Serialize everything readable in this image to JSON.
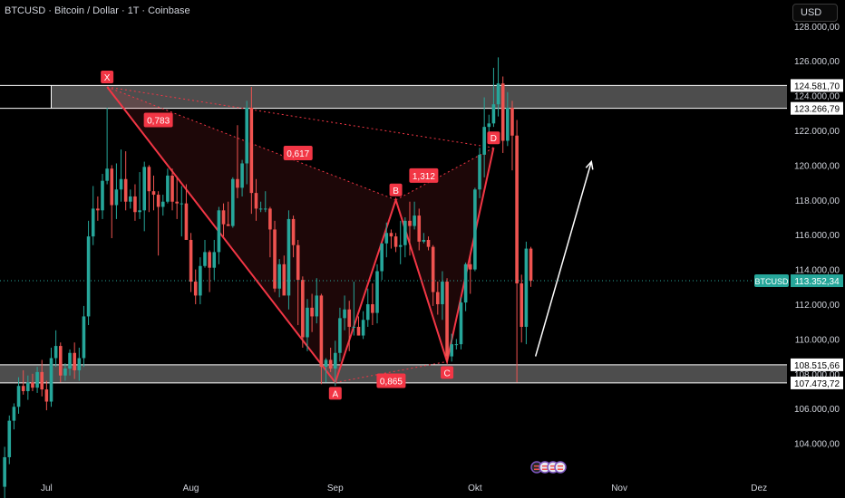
{
  "header": {
    "title": "BTCUSD · Bitcoin / Dollar · 1T · Coinbase",
    "currency_button": "USD"
  },
  "colors": {
    "background": "#000000",
    "up": "#26a69a",
    "down": "#ef5350",
    "pattern": "#f23645",
    "zone_fill": "#ffffff",
    "axis_text": "#d1d4dc",
    "arrow": "#ffffff"
  },
  "chart_data": {
    "type": "candlestick",
    "symbol": "BTCUSD",
    "y_ticks": [
      "104.000,00",
      "106.000,00",
      "108.000,00",
      "110.000,00",
      "112.000,00",
      "114.000,00",
      "116.000,00",
      "118.000,00",
      "120.000,00",
      "122.000,00",
      "124.000,00",
      "126.000,00",
      "128.000,00"
    ],
    "y_tick_values": [
      104000,
      106000,
      108000,
      110000,
      112000,
      114000,
      116000,
      118000,
      120000,
      122000,
      124000,
      126000,
      128000
    ],
    "ylim": [
      102000,
      129500
    ],
    "x_ticks": [
      {
        "label": "Jul",
        "date": "2025-07-01"
      },
      {
        "label": "Aug",
        "date": "2025-08-01"
      },
      {
        "label": "Sep",
        "date": "2025-09-01"
      },
      {
        "label": "Okt",
        "date": "2025-10-01"
      },
      {
        "label": "Nov",
        "date": "2025-11-01"
      },
      {
        "label": "Dez",
        "date": "2025-12-01"
      }
    ],
    "xlim": [
      "2025-06-21",
      "2025-12-07"
    ],
    "last_price": {
      "label": "BTCUSD",
      "value": 113352.34,
      "text": "113.352,34"
    },
    "zones": [
      {
        "top": 124581.7,
        "bottom": 123266.79,
        "top_text": "124.581,70",
        "bottom_text": "123.266,79",
        "start": "2025-07-02"
      },
      {
        "top": 108515.66,
        "bottom": 107473.72,
        "top_text": "108.515,66",
        "bottom_text": "107.473,72",
        "start": "2025-06-21"
      }
    ],
    "harmonic_points": [
      {
        "label": "X",
        "date": "2025-07-14",
        "price": 124500
      },
      {
        "label": "A",
        "date": "2025-09-01",
        "price": 107500
      },
      {
        "label": "B",
        "date": "2025-09-14",
        "price": 118000
      },
      {
        "label": "C",
        "date": "2025-09-25",
        "price": 108700
      },
      {
        "label": "D",
        "date": "2025-10-05",
        "price": 121000
      }
    ],
    "ratios": [
      {
        "text": "0,783",
        "date": "2025-07-25",
        "price": 122600
      },
      {
        "text": "0,617",
        "date": "2025-08-24",
        "price": 120700
      },
      {
        "text": "1,312",
        "date": "2025-09-20",
        "price": 119400
      },
      {
        "text": "0,865",
        "date": "2025-09-13",
        "price": 107600
      }
    ],
    "projection_arrow": {
      "from_date": "2025-10-14",
      "from_price": 109000,
      "to_date": "2025-10-26",
      "to_price": 120200
    },
    "candles": [
      {
        "d": "2025-06-22",
        "o": 101500,
        "h": 103800,
        "l": 100800,
        "c": 103200
      },
      {
        "d": "2025-06-23",
        "o": 103200,
        "h": 105600,
        "l": 102800,
        "c": 105300
      },
      {
        "d": "2025-06-24",
        "o": 105300,
        "h": 106300,
        "l": 104800,
        "c": 106100
      },
      {
        "d": "2025-06-25",
        "o": 106100,
        "h": 107800,
        "l": 105700,
        "c": 107300
      },
      {
        "d": "2025-06-26",
        "o": 107300,
        "h": 108200,
        "l": 106800,
        "c": 107000
      },
      {
        "d": "2025-06-27",
        "o": 107000,
        "h": 107900,
        "l": 106500,
        "c": 107500
      },
      {
        "d": "2025-06-28",
        "o": 107500,
        "h": 108000,
        "l": 107000,
        "c": 107200
      },
      {
        "d": "2025-06-29",
        "o": 107200,
        "h": 108400,
        "l": 106900,
        "c": 108100
      },
      {
        "d": "2025-06-30",
        "o": 108100,
        "h": 108800,
        "l": 106700,
        "c": 107100
      },
      {
        "d": "2025-07-01",
        "o": 107100,
        "h": 107600,
        "l": 105900,
        "c": 106400
      },
      {
        "d": "2025-07-02",
        "o": 106400,
        "h": 109500,
        "l": 106100,
        "c": 108900
      },
      {
        "d": "2025-07-03",
        "o": 108900,
        "h": 110500,
        "l": 108400,
        "c": 109600
      },
      {
        "d": "2025-07-04",
        "o": 109600,
        "h": 109800,
        "l": 107500,
        "c": 107900
      },
      {
        "d": "2025-07-05",
        "o": 107900,
        "h": 108600,
        "l": 107600,
        "c": 108300
      },
      {
        "d": "2025-07-06",
        "o": 108300,
        "h": 109400,
        "l": 107900,
        "c": 109200
      },
      {
        "d": "2025-07-07",
        "o": 109200,
        "h": 109800,
        "l": 107700,
        "c": 108200
      },
      {
        "d": "2025-07-08",
        "o": 108200,
        "h": 109500,
        "l": 107600,
        "c": 108900
      },
      {
        "d": "2025-07-09",
        "o": 108900,
        "h": 111900,
        "l": 108400,
        "c": 111300
      },
      {
        "d": "2025-07-10",
        "o": 111300,
        "h": 116800,
        "l": 110800,
        "c": 115900
      },
      {
        "d": "2025-07-11",
        "o": 115900,
        "h": 118800,
        "l": 115400,
        "c": 117500
      },
      {
        "d": "2025-07-12",
        "o": 117500,
        "h": 118200,
        "l": 116800,
        "c": 117400
      },
      {
        "d": "2025-07-13",
        "o": 117400,
        "h": 119500,
        "l": 116900,
        "c": 119100
      },
      {
        "d": "2025-07-14",
        "o": 119100,
        "h": 123300,
        "l": 118900,
        "c": 119800
      },
      {
        "d": "2025-07-15",
        "o": 119800,
        "h": 120000,
        "l": 115800,
        "c": 117700
      },
      {
        "d": "2025-07-16",
        "o": 117700,
        "h": 120100,
        "l": 116900,
        "c": 118600
      },
      {
        "d": "2025-07-17",
        "o": 118600,
        "h": 120900,
        "l": 117900,
        "c": 119200
      },
      {
        "d": "2025-07-18",
        "o": 119200,
        "h": 120800,
        "l": 117400,
        "c": 117900
      },
      {
        "d": "2025-07-19",
        "o": 117900,
        "h": 118600,
        "l": 117500,
        "c": 118200
      },
      {
        "d": "2025-07-20",
        "o": 118200,
        "h": 118900,
        "l": 116800,
        "c": 117300
      },
      {
        "d": "2025-07-21",
        "o": 117300,
        "h": 119600,
        "l": 116900,
        "c": 117400
      },
      {
        "d": "2025-07-22",
        "o": 117400,
        "h": 120200,
        "l": 116200,
        "c": 119900
      },
      {
        "d": "2025-07-23",
        "o": 119900,
        "h": 120000,
        "l": 117300,
        "c": 118500
      },
      {
        "d": "2025-07-24",
        "o": 118500,
        "h": 119400,
        "l": 117400,
        "c": 118300
      },
      {
        "d": "2025-07-25",
        "o": 118300,
        "h": 118500,
        "l": 114800,
        "c": 117600
      },
      {
        "d": "2025-07-26",
        "o": 117600,
        "h": 118300,
        "l": 117100,
        "c": 117900
      },
      {
        "d": "2025-07-27",
        "o": 117900,
        "h": 119800,
        "l": 117800,
        "c": 119400
      },
      {
        "d": "2025-07-28",
        "o": 119400,
        "h": 119800,
        "l": 117400,
        "c": 117900
      },
      {
        "d": "2025-07-29",
        "o": 117900,
        "h": 119300,
        "l": 116900,
        "c": 117800
      },
      {
        "d": "2025-07-30",
        "o": 117800,
        "h": 118800,
        "l": 115900,
        "c": 117800
      },
      {
        "d": "2025-07-31",
        "o": 117800,
        "h": 118900,
        "l": 115800,
        "c": 115700
      },
      {
        "d": "2025-08-01",
        "o": 115700,
        "h": 116100,
        "l": 112700,
        "c": 113300
      },
      {
        "d": "2025-08-02",
        "o": 113300,
        "h": 114000,
        "l": 112000,
        "c": 112500
      },
      {
        "d": "2025-08-03",
        "o": 112500,
        "h": 114700,
        "l": 112000,
        "c": 114200
      },
      {
        "d": "2025-08-04",
        "o": 114200,
        "h": 115700,
        "l": 114100,
        "c": 115000
      },
      {
        "d": "2025-08-05",
        "o": 115000,
        "h": 115100,
        "l": 112700,
        "c": 114100
      },
      {
        "d": "2025-08-06",
        "o": 114100,
        "h": 115700,
        "l": 113400,
        "c": 115000
      },
      {
        "d": "2025-08-07",
        "o": 115000,
        "h": 117600,
        "l": 114300,
        "c": 117400
      },
      {
        "d": "2025-08-08",
        "o": 117400,
        "h": 117800,
        "l": 115900,
        "c": 116600
      },
      {
        "d": "2025-08-09",
        "o": 116600,
        "h": 117900,
        "l": 116500,
        "c": 116500
      },
      {
        "d": "2025-08-10",
        "o": 116500,
        "h": 119300,
        "l": 116400,
        "c": 119200
      },
      {
        "d": "2025-08-11",
        "o": 119200,
        "h": 122300,
        "l": 118100,
        "c": 118700
      },
      {
        "d": "2025-08-12",
        "o": 118700,
        "h": 120300,
        "l": 118200,
        "c": 120100
      },
      {
        "d": "2025-08-13",
        "o": 120100,
        "h": 123700,
        "l": 118900,
        "c": 123300
      },
      {
        "d": "2025-08-14",
        "o": 123300,
        "h": 124500,
        "l": 117200,
        "c": 118400
      },
      {
        "d": "2025-08-15",
        "o": 118400,
        "h": 119200,
        "l": 116800,
        "c": 117500
      },
      {
        "d": "2025-08-16",
        "o": 117500,
        "h": 117900,
        "l": 117300,
        "c": 117500
      },
      {
        "d": "2025-08-17",
        "o": 117500,
        "h": 118500,
        "l": 117300,
        "c": 117500
      },
      {
        "d": "2025-08-18",
        "o": 117500,
        "h": 117600,
        "l": 114700,
        "c": 116300
      },
      {
        "d": "2025-08-19",
        "o": 116300,
        "h": 116800,
        "l": 112700,
        "c": 112900
      },
      {
        "d": "2025-08-20",
        "o": 112900,
        "h": 114600,
        "l": 112400,
        "c": 114300
      },
      {
        "d": "2025-08-21",
        "o": 114300,
        "h": 114800,
        "l": 112600,
        "c": 112500
      },
      {
        "d": "2025-08-22",
        "o": 112500,
        "h": 117400,
        "l": 111700,
        "c": 116900
      },
      {
        "d": "2025-08-23",
        "o": 116900,
        "h": 117100,
        "l": 114700,
        "c": 115400
      },
      {
        "d": "2025-08-24",
        "o": 115400,
        "h": 115700,
        "l": 110800,
        "c": 113400
      },
      {
        "d": "2025-08-25",
        "o": 113400,
        "h": 113600,
        "l": 109500,
        "c": 110100
      },
      {
        "d": "2025-08-26",
        "o": 110100,
        "h": 112300,
        "l": 109300,
        "c": 111800
      },
      {
        "d": "2025-08-27",
        "o": 111800,
        "h": 112600,
        "l": 110400,
        "c": 111300
      },
      {
        "d": "2025-08-28",
        "o": 111300,
        "h": 113500,
        "l": 110900,
        "c": 112500
      },
      {
        "d": "2025-08-29",
        "o": 112500,
        "h": 112600,
        "l": 107400,
        "c": 108400
      },
      {
        "d": "2025-08-30",
        "o": 108400,
        "h": 108900,
        "l": 107500,
        "c": 108800
      },
      {
        "d": "2025-08-31",
        "o": 108800,
        "h": 109500,
        "l": 108100,
        "c": 108300
      },
      {
        "d": "2025-09-01",
        "o": 108300,
        "h": 109900,
        "l": 107300,
        "c": 109200
      },
      {
        "d": "2025-09-02",
        "o": 109200,
        "h": 111800,
        "l": 108700,
        "c": 111200
      },
      {
        "d": "2025-09-03",
        "o": 111200,
        "h": 112500,
        "l": 110500,
        "c": 111700
      },
      {
        "d": "2025-09-04",
        "o": 111700,
        "h": 112200,
        "l": 109300,
        "c": 110700
      },
      {
        "d": "2025-09-05",
        "o": 110700,
        "h": 113300,
        "l": 110200,
        "c": 110700
      },
      {
        "d": "2025-09-06",
        "o": 110700,
        "h": 111300,
        "l": 110200,
        "c": 110200
      },
      {
        "d": "2025-09-07",
        "o": 110200,
        "h": 111600,
        "l": 110000,
        "c": 111100
      },
      {
        "d": "2025-09-08",
        "o": 111100,
        "h": 112900,
        "l": 110700,
        "c": 112000
      },
      {
        "d": "2025-09-09",
        "o": 112000,
        "h": 113200,
        "l": 110800,
        "c": 111500
      },
      {
        "d": "2025-09-10",
        "o": 111500,
        "h": 114300,
        "l": 110900,
        "c": 113900
      },
      {
        "d": "2025-09-11",
        "o": 113900,
        "h": 115500,
        "l": 113400,
        "c": 115500
      },
      {
        "d": "2025-09-12",
        "o": 115500,
        "h": 116700,
        "l": 114700,
        "c": 116100
      },
      {
        "d": "2025-09-13",
        "o": 116100,
        "h": 116300,
        "l": 115200,
        "c": 115900
      },
      {
        "d": "2025-09-14",
        "o": 115900,
        "h": 116100,
        "l": 115000,
        "c": 115300
      },
      {
        "d": "2025-09-15",
        "o": 115300,
        "h": 116800,
        "l": 114300,
        "c": 115400
      },
      {
        "d": "2025-09-16",
        "o": 115400,
        "h": 117000,
        "l": 114700,
        "c": 116800
      },
      {
        "d": "2025-09-17",
        "o": 116800,
        "h": 117900,
        "l": 114800,
        "c": 116500
      },
      {
        "d": "2025-09-18",
        "o": 116500,
        "h": 117900,
        "l": 116300,
        "c": 117100
      },
      {
        "d": "2025-09-19",
        "o": 117100,
        "h": 117500,
        "l": 115100,
        "c": 115600
      },
      {
        "d": "2025-09-20",
        "o": 115600,
        "h": 116100,
        "l": 115500,
        "c": 115700
      },
      {
        "d": "2025-09-21",
        "o": 115700,
        "h": 115900,
        "l": 115100,
        "c": 115300
      },
      {
        "d": "2025-09-22",
        "o": 115300,
        "h": 115400,
        "l": 111900,
        "c": 112700
      },
      {
        "d": "2025-09-23",
        "o": 112700,
        "h": 113300,
        "l": 111400,
        "c": 112000
      },
      {
        "d": "2025-09-24",
        "o": 112000,
        "h": 113900,
        "l": 111100,
        "c": 113300
      },
      {
        "d": "2025-09-25",
        "o": 113300,
        "h": 113500,
        "l": 108700,
        "c": 109000
      },
      {
        "d": "2025-09-26",
        "o": 109000,
        "h": 110300,
        "l": 108700,
        "c": 109700
      },
      {
        "d": "2025-09-27",
        "o": 109700,
        "h": 110000,
        "l": 109400,
        "c": 109700
      },
      {
        "d": "2025-09-28",
        "o": 109700,
        "h": 112400,
        "l": 109400,
        "c": 112100
      },
      {
        "d": "2025-09-29",
        "o": 112100,
        "h": 114400,
        "l": 111600,
        "c": 114300
      },
      {
        "d": "2025-09-30",
        "o": 114300,
        "h": 114800,
        "l": 112600,
        "c": 114000
      },
      {
        "d": "2025-10-01",
        "o": 114000,
        "h": 118700,
        "l": 113900,
        "c": 118600
      },
      {
        "d": "2025-10-02",
        "o": 118600,
        "h": 121000,
        "l": 118100,
        "c": 120600
      },
      {
        "d": "2025-10-03",
        "o": 120600,
        "h": 123900,
        "l": 119300,
        "c": 122200
      },
      {
        "d": "2025-10-04",
        "o": 122200,
        "h": 122900,
        "l": 121800,
        "c": 122400
      },
      {
        "d": "2025-10-05",
        "o": 122400,
        "h": 125600,
        "l": 122200,
        "c": 123500
      },
      {
        "d": "2025-10-06",
        "o": 123500,
        "h": 126200,
        "l": 122800,
        "c": 124700
      },
      {
        "d": "2025-10-07",
        "o": 124700,
        "h": 125100,
        "l": 120700,
        "c": 121400
      },
      {
        "d": "2025-10-08",
        "o": 121400,
        "h": 124200,
        "l": 121100,
        "c": 123300
      },
      {
        "d": "2025-10-09",
        "o": 123300,
        "h": 123700,
        "l": 119700,
        "c": 121700
      },
      {
        "d": "2025-10-10",
        "o": 121700,
        "h": 122600,
        "l": 107500,
        "c": 113200
      },
      {
        "d": "2025-10-11",
        "o": 113200,
        "h": 113700,
        "l": 109800,
        "c": 110700
      },
      {
        "d": "2025-10-12",
        "o": 110700,
        "h": 115600,
        "l": 109700,
        "c": 115200
      },
      {
        "d": "2025-10-13",
        "o": 115200,
        "h": 115300,
        "l": 113000,
        "c": 113352
      }
    ]
  }
}
